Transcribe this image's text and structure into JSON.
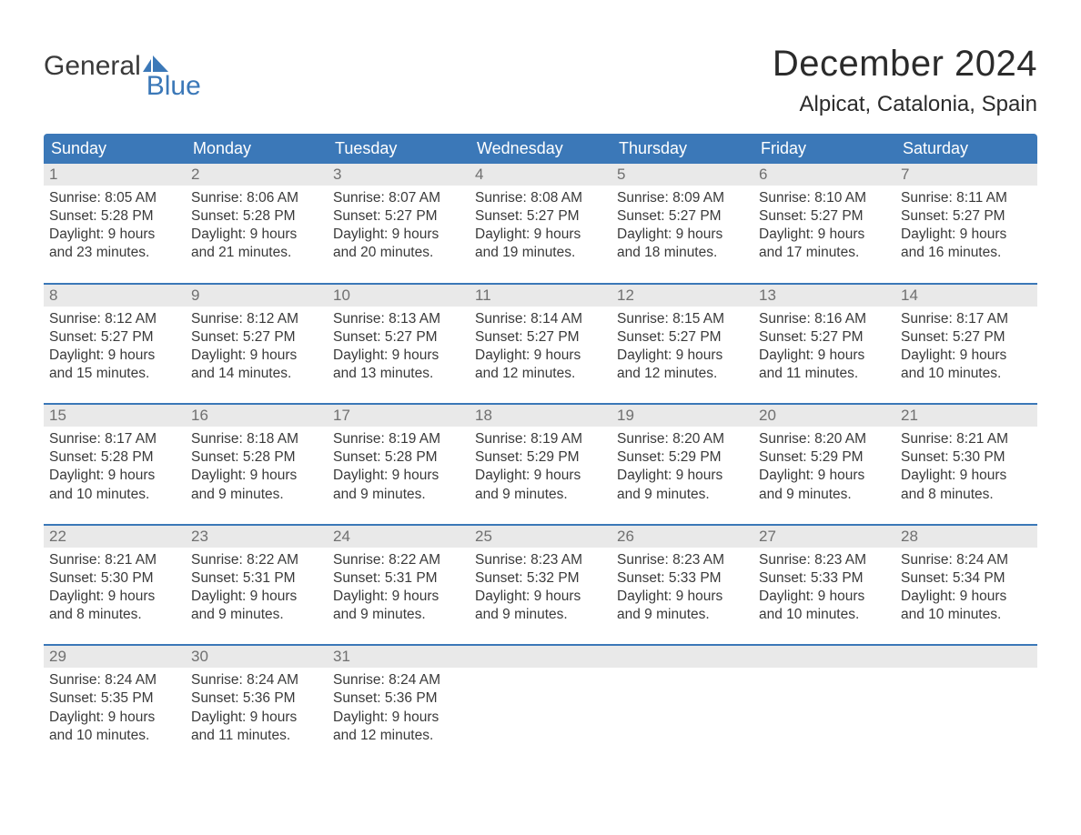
{
  "logo": {
    "text_general": "General",
    "text_blue": "Blue"
  },
  "title": "December 2024",
  "location": "Alpicat, Catalonia, Spain",
  "colors": {
    "header_bg": "#3b78b8",
    "header_text": "#ffffff",
    "daynum_bg": "#e9e9e9",
    "daynum_text": "#707070",
    "body_text": "#3a3a3a",
    "week_border": "#3b78b8",
    "background": "#ffffff",
    "logo_blue": "#3b78b8"
  },
  "fonts": {
    "title_size_pt": 30,
    "location_size_pt": 18,
    "weekday_size_pt": 13.5,
    "daynum_size_pt": 12.5,
    "cell_size_pt": 11.5,
    "family": "Arial"
  },
  "weekdays": [
    "Sunday",
    "Monday",
    "Tuesday",
    "Wednesday",
    "Thursday",
    "Friday",
    "Saturday"
  ],
  "weeks": [
    [
      {
        "n": "1",
        "sr": "Sunrise: 8:05 AM",
        "ss": "Sunset: 5:28 PM",
        "d1": "Daylight: 9 hours",
        "d2": "and 23 minutes."
      },
      {
        "n": "2",
        "sr": "Sunrise: 8:06 AM",
        "ss": "Sunset: 5:28 PM",
        "d1": "Daylight: 9 hours",
        "d2": "and 21 minutes."
      },
      {
        "n": "3",
        "sr": "Sunrise: 8:07 AM",
        "ss": "Sunset: 5:27 PM",
        "d1": "Daylight: 9 hours",
        "d2": "and 20 minutes."
      },
      {
        "n": "4",
        "sr": "Sunrise: 8:08 AM",
        "ss": "Sunset: 5:27 PM",
        "d1": "Daylight: 9 hours",
        "d2": "and 19 minutes."
      },
      {
        "n": "5",
        "sr": "Sunrise: 8:09 AM",
        "ss": "Sunset: 5:27 PM",
        "d1": "Daylight: 9 hours",
        "d2": "and 18 minutes."
      },
      {
        "n": "6",
        "sr": "Sunrise: 8:10 AM",
        "ss": "Sunset: 5:27 PM",
        "d1": "Daylight: 9 hours",
        "d2": "and 17 minutes."
      },
      {
        "n": "7",
        "sr": "Sunrise: 8:11 AM",
        "ss": "Sunset: 5:27 PM",
        "d1": "Daylight: 9 hours",
        "d2": "and 16 minutes."
      }
    ],
    [
      {
        "n": "8",
        "sr": "Sunrise: 8:12 AM",
        "ss": "Sunset: 5:27 PM",
        "d1": "Daylight: 9 hours",
        "d2": "and 15 minutes."
      },
      {
        "n": "9",
        "sr": "Sunrise: 8:12 AM",
        "ss": "Sunset: 5:27 PM",
        "d1": "Daylight: 9 hours",
        "d2": "and 14 minutes."
      },
      {
        "n": "10",
        "sr": "Sunrise: 8:13 AM",
        "ss": "Sunset: 5:27 PM",
        "d1": "Daylight: 9 hours",
        "d2": "and 13 minutes."
      },
      {
        "n": "11",
        "sr": "Sunrise: 8:14 AM",
        "ss": "Sunset: 5:27 PM",
        "d1": "Daylight: 9 hours",
        "d2": "and 12 minutes."
      },
      {
        "n": "12",
        "sr": "Sunrise: 8:15 AM",
        "ss": "Sunset: 5:27 PM",
        "d1": "Daylight: 9 hours",
        "d2": "and 12 minutes."
      },
      {
        "n": "13",
        "sr": "Sunrise: 8:16 AM",
        "ss": "Sunset: 5:27 PM",
        "d1": "Daylight: 9 hours",
        "d2": "and 11 minutes."
      },
      {
        "n": "14",
        "sr": "Sunrise: 8:17 AM",
        "ss": "Sunset: 5:27 PM",
        "d1": "Daylight: 9 hours",
        "d2": "and 10 minutes."
      }
    ],
    [
      {
        "n": "15",
        "sr": "Sunrise: 8:17 AM",
        "ss": "Sunset: 5:28 PM",
        "d1": "Daylight: 9 hours",
        "d2": "and 10 minutes."
      },
      {
        "n": "16",
        "sr": "Sunrise: 8:18 AM",
        "ss": "Sunset: 5:28 PM",
        "d1": "Daylight: 9 hours",
        "d2": "and 9 minutes."
      },
      {
        "n": "17",
        "sr": "Sunrise: 8:19 AM",
        "ss": "Sunset: 5:28 PM",
        "d1": "Daylight: 9 hours",
        "d2": "and 9 minutes."
      },
      {
        "n": "18",
        "sr": "Sunrise: 8:19 AM",
        "ss": "Sunset: 5:29 PM",
        "d1": "Daylight: 9 hours",
        "d2": "and 9 minutes."
      },
      {
        "n": "19",
        "sr": "Sunrise: 8:20 AM",
        "ss": "Sunset: 5:29 PM",
        "d1": "Daylight: 9 hours",
        "d2": "and 9 minutes."
      },
      {
        "n": "20",
        "sr": "Sunrise: 8:20 AM",
        "ss": "Sunset: 5:29 PM",
        "d1": "Daylight: 9 hours",
        "d2": "and 9 minutes."
      },
      {
        "n": "21",
        "sr": "Sunrise: 8:21 AM",
        "ss": "Sunset: 5:30 PM",
        "d1": "Daylight: 9 hours",
        "d2": "and 8 minutes."
      }
    ],
    [
      {
        "n": "22",
        "sr": "Sunrise: 8:21 AM",
        "ss": "Sunset: 5:30 PM",
        "d1": "Daylight: 9 hours",
        "d2": "and 8 minutes."
      },
      {
        "n": "23",
        "sr": "Sunrise: 8:22 AM",
        "ss": "Sunset: 5:31 PM",
        "d1": "Daylight: 9 hours",
        "d2": "and 9 minutes."
      },
      {
        "n": "24",
        "sr": "Sunrise: 8:22 AM",
        "ss": "Sunset: 5:31 PM",
        "d1": "Daylight: 9 hours",
        "d2": "and 9 minutes."
      },
      {
        "n": "25",
        "sr": "Sunrise: 8:23 AM",
        "ss": "Sunset: 5:32 PM",
        "d1": "Daylight: 9 hours",
        "d2": "and 9 minutes."
      },
      {
        "n": "26",
        "sr": "Sunrise: 8:23 AM",
        "ss": "Sunset: 5:33 PM",
        "d1": "Daylight: 9 hours",
        "d2": "and 9 minutes."
      },
      {
        "n": "27",
        "sr": "Sunrise: 8:23 AM",
        "ss": "Sunset: 5:33 PM",
        "d1": "Daylight: 9 hours",
        "d2": "and 10 minutes."
      },
      {
        "n": "28",
        "sr": "Sunrise: 8:24 AM",
        "ss": "Sunset: 5:34 PM",
        "d1": "Daylight: 9 hours",
        "d2": "and 10 minutes."
      }
    ],
    [
      {
        "n": "29",
        "sr": "Sunrise: 8:24 AM",
        "ss": "Sunset: 5:35 PM",
        "d1": "Daylight: 9 hours",
        "d2": "and 10 minutes."
      },
      {
        "n": "30",
        "sr": "Sunrise: 8:24 AM",
        "ss": "Sunset: 5:36 PM",
        "d1": "Daylight: 9 hours",
        "d2": "and 11 minutes."
      },
      {
        "n": "31",
        "sr": "Sunrise: 8:24 AM",
        "ss": "Sunset: 5:36 PM",
        "d1": "Daylight: 9 hours",
        "d2": "and 12 minutes."
      },
      null,
      null,
      null,
      null
    ]
  ]
}
